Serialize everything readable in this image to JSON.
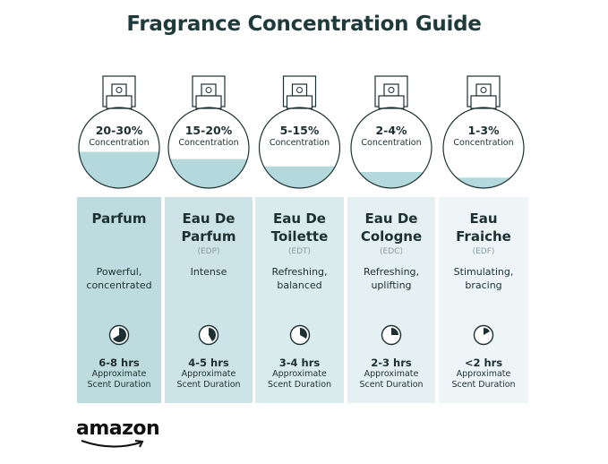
{
  "title": "Fragrance Concentration Guide",
  "colors": {
    "card_left": "#bedcdf",
    "card_right": "#f1f7f8",
    "liquid": "#b3d9dd",
    "ink": "#1c2f31",
    "muted": "#8a9a9c"
  },
  "concentration_label": "Concentration",
  "duration_label_line1": "Approximate",
  "duration_label_line2": "Scent Duration",
  "types": [
    {
      "percent": "20-30%",
      "fill_level": 0.45,
      "name_line1": "Parfum",
      "name_line2": "",
      "abbr": "",
      "desc_line1": "Powerful,",
      "desc_line2": "concentrated",
      "duration": "6-8 hrs",
      "clock_fraction": 0.667
    },
    {
      "percent": "15-20%",
      "fill_level": 0.36,
      "name_line1": "Eau De",
      "name_line2": "Parfum",
      "abbr": "(EDP)",
      "desc_line1": "Intense",
      "desc_line2": "",
      "duration": "4-5 hrs",
      "clock_fraction": 0.417
    },
    {
      "percent": "5-15%",
      "fill_level": 0.27,
      "name_line1": "Eau De",
      "name_line2": "Toilette",
      "abbr": "(EDT)",
      "desc_line1": "Refreshing,",
      "desc_line2": "balanced",
      "duration": "3-4 hrs",
      "clock_fraction": 0.333
    },
    {
      "percent": "2-4%",
      "fill_level": 0.2,
      "name_line1": "Eau De",
      "name_line2": "Cologne",
      "abbr": "(EDC)",
      "desc_line1": "Refreshing,",
      "desc_line2": "uplifting",
      "duration": "2-3 hrs",
      "clock_fraction": 0.25
    },
    {
      "percent": "1-3%",
      "fill_level": 0.13,
      "name_line1": "Eau",
      "name_line2": "Fraiche",
      "abbr": "(EDF)",
      "desc_line1": "Stimulating,",
      "desc_line2": "bracing",
      "duration": "<2 hrs",
      "clock_fraction": 0.167
    }
  ],
  "logo": "amazon"
}
